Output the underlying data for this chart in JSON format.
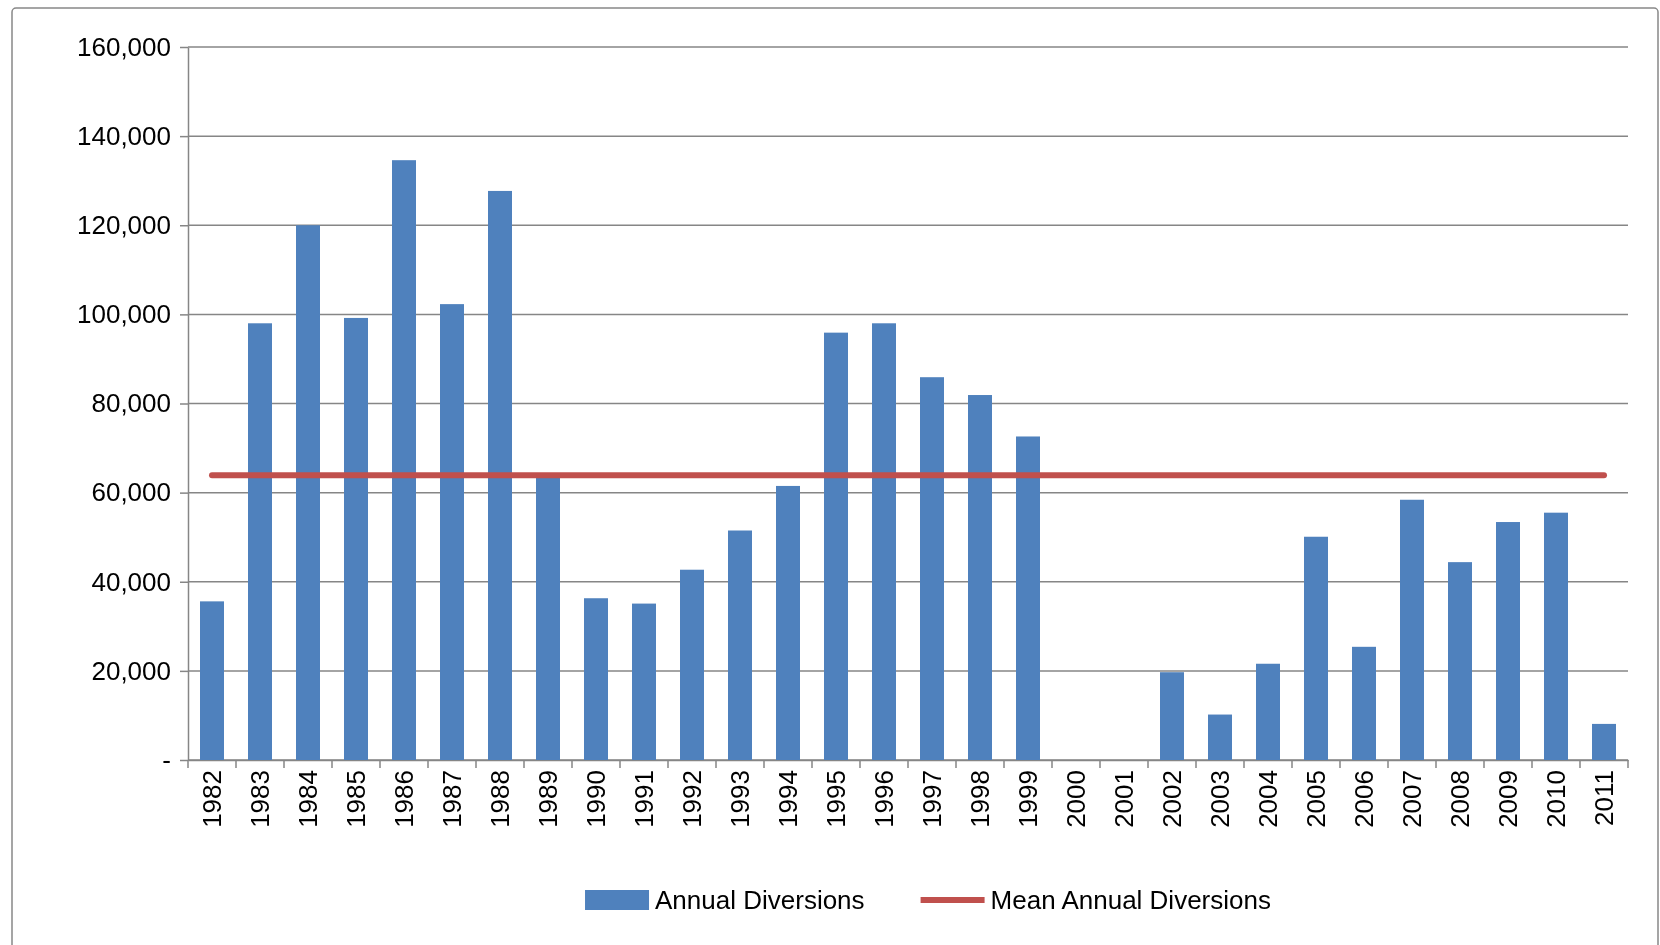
{
  "chart_data": {
    "type": "bar",
    "categories": [
      "1982",
      "1983",
      "1984",
      "1985",
      "1986",
      "1987",
      "1988",
      "1989",
      "1990",
      "1991",
      "1992",
      "1993",
      "1994",
      "1995",
      "1996",
      "1997",
      "1998",
      "1999",
      "2000",
      "2001",
      "2002",
      "2003",
      "2004",
      "2005",
      "2006",
      "2007",
      "2008",
      "2009",
      "2010",
      "2011"
    ],
    "series": [
      {
        "name": "Annual Diversions",
        "color": "#4f81bd",
        "values": [
          35600,
          98000,
          120000,
          99200,
          134600,
          102300,
          127700,
          63600,
          36300,
          35100,
          42700,
          51500,
          61500,
          95900,
          98000,
          85900,
          81900,
          72600,
          0,
          0,
          19700,
          10200,
          21600,
          50100,
          25400,
          58400,
          44400,
          53400,
          55500,
          8100
        ]
      },
      {
        "name": "Mean Annual Diversions",
        "type": "line",
        "color": "#c0504d",
        "values": [
          63900,
          63900,
          63900,
          63900,
          63900,
          63900,
          63900,
          63900,
          63900,
          63900,
          63900,
          63900,
          63900,
          63900,
          63900,
          63900,
          63900,
          63900,
          63900,
          63900,
          63900,
          63900,
          63900,
          63900,
          63900,
          63900,
          63900,
          63900,
          63900,
          63900
        ]
      }
    ],
    "ylim": [
      0,
      160000
    ],
    "yticks": [
      {
        "value": 0,
        "label": "-"
      },
      {
        "value": 20000,
        "label": "20,000"
      },
      {
        "value": 40000,
        "label": "40,000"
      },
      {
        "value": 60000,
        "label": "60,000"
      },
      {
        "value": 80000,
        "label": "80,000"
      },
      {
        "value": 100000,
        "label": "100,000"
      },
      {
        "value": 120000,
        "label": "120,000"
      },
      {
        "value": 140000,
        "label": "140,000"
      },
      {
        "value": 160000,
        "label": "160,000"
      }
    ],
    "grid": "y",
    "legend": "bottom",
    "marker": "none",
    "line_style": "solid"
  }
}
